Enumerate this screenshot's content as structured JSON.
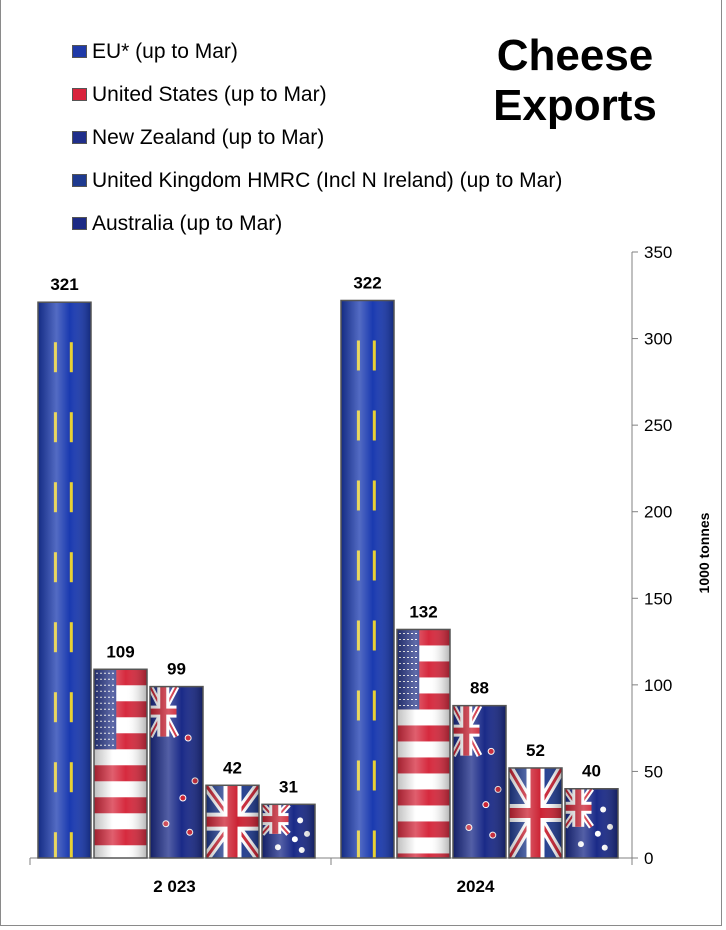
{
  "chart_data": {
    "type": "bar",
    "title_lines": [
      "Cheese",
      "Exports"
    ],
    "ylabel": "1000 tonnes",
    "xlabel": "",
    "ylim": [
      0,
      350
    ],
    "yticks": [
      0,
      50,
      100,
      150,
      200,
      250,
      300,
      350
    ],
    "categories": [
      "2 023",
      "2024"
    ],
    "legend_position": "top-left",
    "grid": false,
    "series": [
      {
        "name": "EU* (up to Mar)",
        "values": [
          321,
          322
        ],
        "flag": "eu-flag",
        "color": "#1f3aa8"
      },
      {
        "name": "United States (up to Mar)",
        "values": [
          109,
          132
        ],
        "flag": "us-flag",
        "color": "#d9233c"
      },
      {
        "name": "New Zealand (up to Mar)",
        "values": [
          99,
          88
        ],
        "flag": "nz-flag",
        "color": "#1f2e8a"
      },
      {
        "name": "United Kingdom HMRC (Incl N Ireland) (up to Mar)",
        "values": [
          42,
          52
        ],
        "flag": "uk-flag",
        "color": "#1e3a8f"
      },
      {
        "name": "Australia (up to Mar)",
        "values": [
          31,
          40
        ],
        "flag": "au-flag",
        "color": "#1c2a85"
      }
    ]
  }
}
